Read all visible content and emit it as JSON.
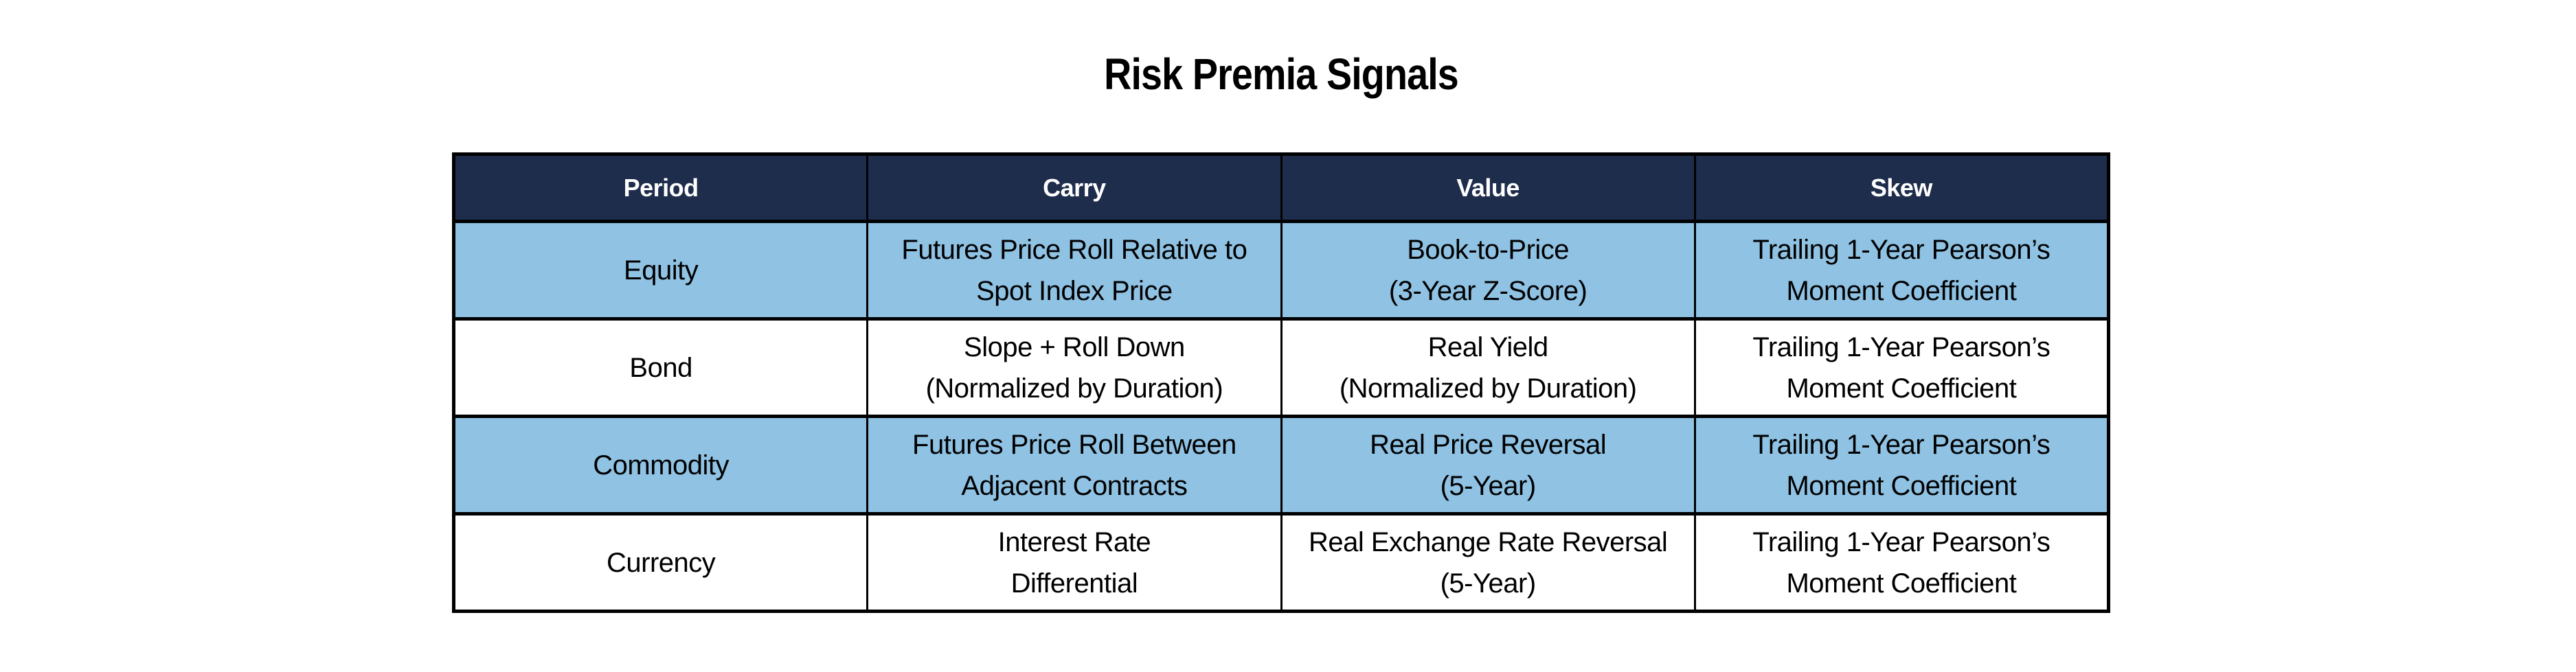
{
  "page": {
    "title": "Risk Premia Signals"
  },
  "colors": {
    "header_bg": "#1E2D4C",
    "header_text": "#FFFFFF",
    "alt_row_bg": "#8FC2E3",
    "row_bg": "#FFFFFF",
    "border": "#000000",
    "body_text": "#000000",
    "page_bg": "#FFFFFF"
  },
  "table": {
    "headers": [
      "Period",
      "Carry",
      "Value",
      "Skew"
    ],
    "rows": [
      {
        "period": "Equity",
        "carry": "Futures Price Roll Relative to\nSpot Index Price",
        "value": "Book-to-Price\n(3-Year Z-Score)",
        "skew": "Trailing 1-Year Pearson’s\nMoment Coefficient"
      },
      {
        "period": "Bond",
        "carry": "Slope + Roll Down\n(Normalized by Duration)",
        "value": "Real Yield\n(Normalized by Duration)",
        "skew": "Trailing 1-Year Pearson’s\nMoment Coefficient"
      },
      {
        "period": "Commodity",
        "carry": "Futures Price Roll Between\nAdjacent Contracts",
        "value": "Real Price Reversal\n(5-Year)",
        "skew": "Trailing 1-Year Pearson’s\nMoment Coefficient"
      },
      {
        "period": "Currency",
        "carry": "Interest Rate\nDifferential",
        "value": "Real Exchange Rate Reversal\n(5-Year)",
        "skew": "Trailing 1-Year Pearson’s\nMoment Coefficient"
      }
    ]
  },
  "chart_data": {
    "type": "table",
    "title": "Risk Premia Signals",
    "columns": [
      "Period",
      "Carry",
      "Value",
      "Skew"
    ],
    "rows": [
      [
        "Equity",
        "Futures Price Roll Relative to Spot Index Price",
        "Book-to-Price (3-Year Z-Score)",
        "Trailing 1-Year Pearson’s Moment Coefficient"
      ],
      [
        "Bond",
        "Slope + Roll Down (Normalized by Duration)",
        "Real Yield (Normalized by Duration)",
        "Trailing 1-Year Pearson’s Moment Coefficient"
      ],
      [
        "Commodity",
        "Futures Price Roll Between Adjacent Contracts",
        "Real Price Reversal (5-Year)",
        "Trailing 1-Year Pearson’s Moment Coefficient"
      ],
      [
        "Currency",
        "Interest Rate Differential",
        "Real Exchange Rate Reversal (5-Year)",
        "Trailing 1-Year Pearson’s Moment Coefficient"
      ]
    ],
    "layout": {
      "header_style": "dark navy bar, white bold text",
      "row_striping": "odd rows light blue (#8FC2E3), even rows white",
      "grid": "black cell borders"
    }
  }
}
